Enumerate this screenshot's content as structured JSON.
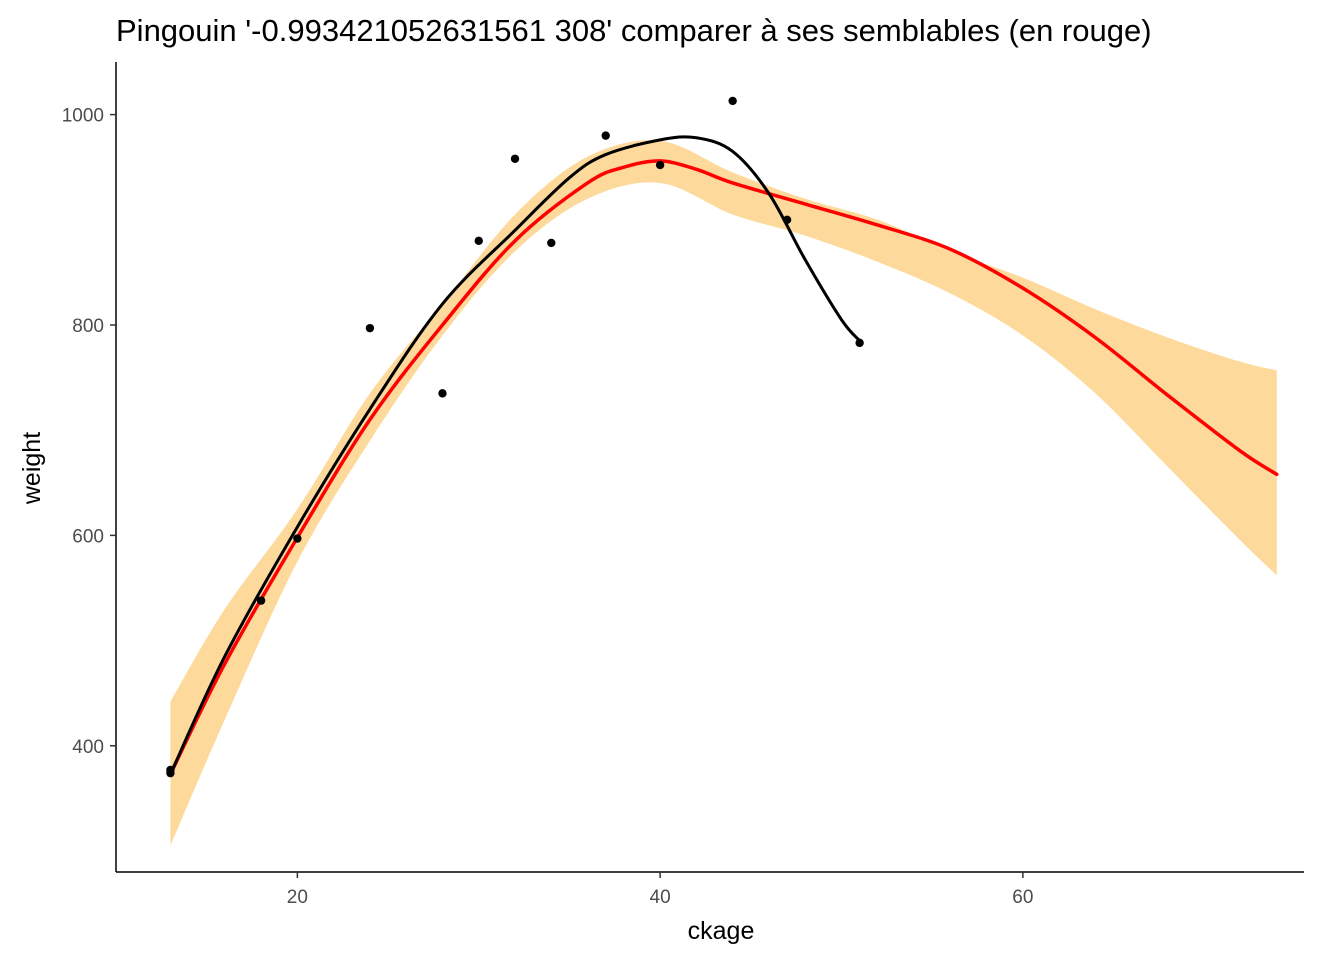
{
  "chart_data": {
    "type": "line",
    "title": "Pingouin '-0.993421052631561 308' comparer à ses semblables (en rouge)",
    "xlabel": "ckage",
    "ylabel": "weight",
    "xlim": [
      10,
      75.5
    ],
    "ylim": [
      280,
      1050
    ],
    "x_ticks": [
      20,
      40,
      60
    ],
    "y_ticks": [
      400,
      600,
      800,
      1000
    ],
    "grid": false,
    "colors": {
      "reference_line": "#ff0000",
      "reference_band": "#fdd99b",
      "individual": "#000000"
    },
    "series": [
      {
        "type": "band",
        "x": [
          13,
          16,
          20,
          24,
          28,
          32,
          36,
          40,
          44,
          48,
          52,
          56,
          60,
          64,
          68,
          72,
          74
        ],
        "lower": [
          305,
          425,
          575,
          690,
          790,
          870,
          920,
          935,
          905,
          885,
          860,
          830,
          790,
          735,
          665,
          595,
          562
        ],
        "upper": [
          442,
          530,
          625,
          735,
          820,
          905,
          960,
          975,
          945,
          920,
          900,
          870,
          845,
          815,
          788,
          765,
          757
        ]
      },
      {
        "type": "line",
        "x": [
          13,
          16,
          20,
          24,
          28,
          32,
          36,
          38,
          40,
          42,
          44,
          48,
          52,
          56,
          60,
          64,
          68,
          72,
          74
        ],
        "y": [
          373,
          478,
          598,
          710,
          800,
          880,
          935,
          950,
          956,
          948,
          935,
          915,
          895,
          872,
          835,
          788,
          733,
          680,
          658
        ]
      },
      {
        "type": "line",
        "x": [
          13,
          16,
          20,
          24,
          28,
          32,
          35,
          37,
          40,
          42,
          44,
          46,
          48,
          50,
          51
        ],
        "y": [
          373,
          485,
          608,
          720,
          820,
          890,
          940,
          962,
          976,
          978,
          965,
          925,
          862,
          805,
          785
        ]
      },
      {
        "type": "scatter",
        "x": [
          13,
          13,
          18,
          20,
          24,
          28,
          30,
          32,
          34,
          37,
          40,
          44,
          47,
          51
        ],
        "y": [
          377,
          374,
          538,
          597,
          797,
          735,
          880,
          958,
          878,
          980,
          952,
          1013,
          900,
          783
        ]
      }
    ]
  }
}
